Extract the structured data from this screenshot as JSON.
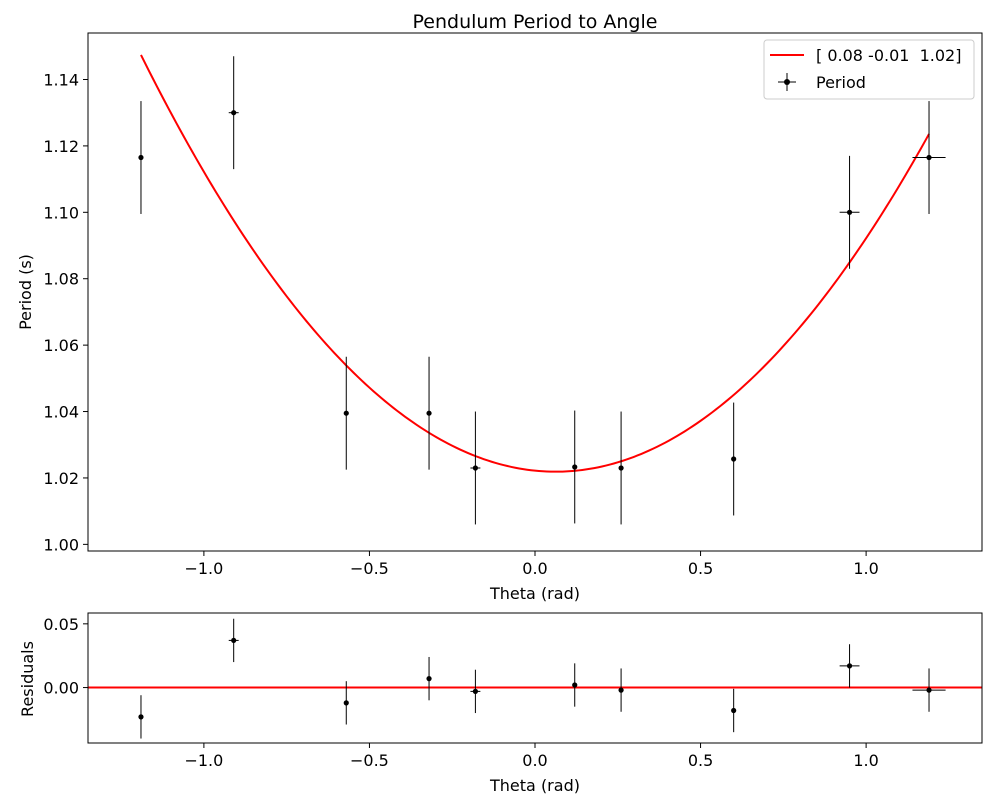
{
  "chart_data": [
    {
      "type": "scatter",
      "title": "Pendulum Period to Angle",
      "xlabel": "Theta (rad)",
      "ylabel": "Period (s)",
      "xlim": [
        -1.35,
        1.35
      ],
      "ylim": [
        0.998,
        1.154
      ],
      "xticks": [
        -1.0,
        -0.5,
        0.0,
        0.5,
        1.0
      ],
      "xtick_labels": [
        "−1.0",
        "−0.5",
        "0.0",
        "0.5",
        "1.0"
      ],
      "yticks": [
        1.0,
        1.02,
        1.04,
        1.06,
        1.08,
        1.1,
        1.12,
        1.14
      ],
      "ytick_labels": [
        "1.00",
        "1.02",
        "1.04",
        "1.06",
        "1.08",
        "1.10",
        "1.12",
        "1.14"
      ],
      "grid": false,
      "legend": "top-right",
      "series": [
        {
          "name": "[ 0.08 -0.01  1.02]",
          "kind": "fit-curve",
          "color": "#ff0000",
          "coefficients": [
            0.08,
            -0.01,
            1.0222
          ],
          "x_range": [
            -1.19,
            1.19
          ]
        },
        {
          "name": "Period",
          "kind": "errorbar",
          "color": "#000000",
          "points": [
            {
              "x": -1.19,
              "y": 1.1165,
              "yerr": 0.017,
              "xerr": 0.0
            },
            {
              "x": -0.91,
              "y": 1.13,
              "yerr": 0.017,
              "xerr": 0.015
            },
            {
              "x": -0.57,
              "y": 1.0395,
              "yerr": 0.017,
              "xerr": 0.0
            },
            {
              "x": -0.32,
              "y": 1.0395,
              "yerr": 0.017,
              "xerr": 0.0
            },
            {
              "x": -0.18,
              "y": 1.023,
              "yerr": 0.017,
              "xerr": 0.015
            },
            {
              "x": 0.12,
              "y": 1.0233,
              "yerr": 0.017,
              "xerr": 0.0
            },
            {
              "x": 0.26,
              "y": 1.023,
              "yerr": 0.017,
              "xerr": 0.0
            },
            {
              "x": 0.6,
              "y": 1.0257,
              "yerr": 0.017,
              "xerr": 0.0
            },
            {
              "x": 0.95,
              "y": 1.1,
              "yerr": 0.017,
              "xerr": 0.03
            },
            {
              "x": 1.19,
              "y": 1.1165,
              "yerr": 0.017,
              "xerr": 0.05
            }
          ]
        }
      ]
    },
    {
      "type": "scatter",
      "title": "",
      "xlabel": "Theta (rad)",
      "ylabel": "Residuals",
      "xlim": [
        -1.35,
        1.35
      ],
      "ylim": [
        -0.0435,
        0.0585
      ],
      "xticks": [
        -1.0,
        -0.5,
        0.0,
        0.5,
        1.0
      ],
      "xtick_labels": [
        "−1.0",
        "−0.5",
        "0.0",
        "0.5",
        "1.0"
      ],
      "yticks": [
        0.0,
        0.05
      ],
      "ytick_labels": [
        "0.00",
        "0.05"
      ],
      "grid": false,
      "series": [
        {
          "kind": "zero-line",
          "color": "#ff0000",
          "y": 0.0
        },
        {
          "kind": "errorbar",
          "color": "#000000",
          "points": [
            {
              "x": -1.19,
              "y": -0.023,
              "yerr": 0.017,
              "xerr": 0.0
            },
            {
              "x": -0.91,
              "y": 0.037,
              "yerr": 0.017,
              "xerr": 0.015
            },
            {
              "x": -0.57,
              "y": -0.012,
              "yerr": 0.017,
              "xerr": 0.0
            },
            {
              "x": -0.32,
              "y": 0.007,
              "yerr": 0.017,
              "xerr": 0.0
            },
            {
              "x": -0.18,
              "y": -0.003,
              "yerr": 0.017,
              "xerr": 0.015
            },
            {
              "x": 0.12,
              "y": 0.002,
              "yerr": 0.017,
              "xerr": 0.0
            },
            {
              "x": 0.26,
              "y": -0.002,
              "yerr": 0.017,
              "xerr": 0.0
            },
            {
              "x": 0.6,
              "y": -0.018,
              "yerr": 0.017,
              "xerr": 0.0
            },
            {
              "x": 0.95,
              "y": 0.017,
              "yerr": 0.017,
              "xerr": 0.03
            },
            {
              "x": 1.19,
              "y": -0.002,
              "yerr": 0.017,
              "xerr": 0.05
            }
          ]
        }
      ]
    }
  ]
}
